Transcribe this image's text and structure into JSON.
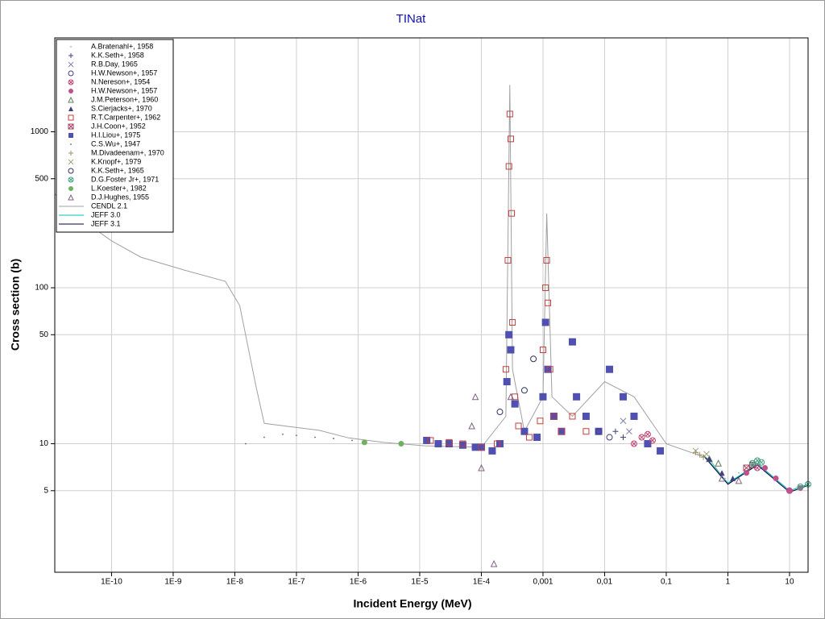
{
  "chart_data": {
    "type": "scatter",
    "title": "TINat",
    "xlabel": "Incident Energy (MeV)",
    "ylabel": "Cross section (b)",
    "xscale": "log",
    "yscale": "log",
    "grid": true,
    "legend": "upper left",
    "xlim": [
      1.2e-11,
      20
    ],
    "ylim": [
      1.5,
      4000
    ],
    "xticks": [
      {
        "value": 1e-10,
        "label": "1E-10"
      },
      {
        "value": 1e-09,
        "label": "1E-9"
      },
      {
        "value": 1e-08,
        "label": "1E-8"
      },
      {
        "value": 1e-07,
        "label": "1E-7"
      },
      {
        "value": 1e-06,
        "label": "1E-6"
      },
      {
        "value": 1e-05,
        "label": "1E-5"
      },
      {
        "value": 0.0001,
        "label": "1E-4"
      },
      {
        "value": 0.001,
        "label": "0,001"
      },
      {
        "value": 0.01,
        "label": "0,01"
      },
      {
        "value": 0.1,
        "label": "0,1"
      },
      1,
      10
    ],
    "yticks": [
      5,
      10,
      50,
      100,
      500,
      1000
    ],
    "series": [
      {
        "name": "A.Bratenahl+, 1958",
        "color": "#a0a0c0",
        "marker": "dot",
        "x": [
          0.9,
          1.5
        ],
        "values": [
          6,
          6.5
        ]
      },
      {
        "name": "K.K.Seth+, 1958",
        "color": "#404080",
        "marker": "plus",
        "x": [
          0.015,
          0.02
        ],
        "values": [
          12,
          11
        ]
      },
      {
        "name": "R.B.Day, 1965",
        "color": "#8080b0",
        "marker": "x",
        "x": [
          0.02,
          0.025
        ],
        "values": [
          14,
          12
        ]
      },
      {
        "name": "H.W.Newson+, 1957",
        "color": "#404080",
        "marker": "circle",
        "x": [
          0.008,
          0.012
        ],
        "values": [
          12,
          11
        ]
      },
      {
        "name": "N.Nereson+, 1954",
        "color": "#c04070",
        "marker": "circle-x",
        "x": [
          0.03,
          0.04,
          0.05,
          0.06,
          3,
          10
        ],
        "values": [
          10,
          11,
          11.5,
          10.5,
          7,
          5
        ]
      },
      {
        "name": "H.W.Newson+, 1957",
        "color": "#c05090",
        "marker": "filled-circle",
        "x": [
          2,
          4,
          6,
          10,
          15
        ],
        "values": [
          6.5,
          7,
          6,
          5,
          5.2
        ]
      },
      {
        "name": "J.M.Peterson+, 1960",
        "color": "#608060",
        "marker": "triangle",
        "x": [
          0.5,
          0.7
        ],
        "values": [
          8,
          7.5
        ]
      },
      {
        "name": "S.Cierjacks+, 1970",
        "color": "#404080",
        "marker": "filled-triangle",
        "x": [
          0.5,
          0.8,
          1.2
        ],
        "values": [
          8,
          6.5,
          6
        ]
      },
      {
        "name": "R.T.Carpenter+, 1962",
        "color": "#c04040",
        "marker": "square",
        "x": [
          1.5e-05,
          3e-05,
          5e-05,
          0.0001,
          0.00018,
          0.00025,
          0.00027,
          0.00028,
          0.00029,
          0.0003,
          0.00031,
          0.00032,
          0.00035,
          0.0004,
          0.0006,
          0.0009,
          0.001,
          0.0011,
          0.00115,
          0.0012,
          0.0013,
          0.0015,
          0.002,
          0.003,
          0.005
        ],
        "values": [
          10.5,
          10.2,
          10,
          9.5,
          10,
          30,
          150,
          600,
          1300,
          900,
          300,
          60,
          20,
          13,
          11,
          14,
          40,
          100,
          150,
          80,
          30,
          15,
          12,
          15,
          12
        ]
      },
      {
        "name": "J.H.Coon+, 1952",
        "color": "#a04060",
        "marker": "square-x",
        "x": [
          2,
          2.5
        ],
        "values": [
          7,
          7.3
        ]
      },
      {
        "name": "H.I.Liou+, 1975",
        "color": "#5050b0",
        "marker": "filled-square",
        "x": [
          1.3e-05,
          2e-05,
          3e-05,
          5e-05,
          8e-05,
          0.0001,
          0.00015,
          0.0002,
          0.00026,
          0.00028,
          0.0003,
          0.00035,
          0.0005,
          0.0008,
          0.001,
          0.0011,
          0.0012,
          0.0015,
          0.002,
          0.003,
          0.0035,
          0.005,
          0.008,
          0.012,
          0.02,
          0.03,
          0.05,
          0.08
        ],
        "values": [
          10.5,
          10,
          10,
          9.8,
          9.5,
          9.5,
          9,
          10,
          25,
          50,
          40,
          18,
          12,
          11,
          20,
          60,
          30,
          15,
          12,
          45,
          20,
          15,
          12,
          30,
          20,
          15,
          10,
          9
        ]
      },
      {
        "name": "C.S.Wu+, 1947",
        "color": "#606060",
        "marker": "dot",
        "x": [
          1.5e-08,
          3e-08,
          6e-08,
          1e-07,
          2e-07,
          4e-07,
          8e-07
        ],
        "values": [
          10,
          11,
          11.5,
          11.3,
          11,
          10.8,
          10.5
        ]
      },
      {
        "name": "M.Divadeenam+, 1970",
        "color": "#a09060",
        "marker": "plus",
        "x": [
          0.3,
          0.35,
          0.4
        ],
        "values": [
          8.8,
          8.5,
          8.2
        ]
      },
      {
        "name": "K.Knopf+, 1979",
        "color": "#a0a080",
        "marker": "x",
        "x": [
          0.3,
          0.45
        ],
        "values": [
          9,
          8.6
        ]
      },
      {
        "name": "K.K.Seth+, 1965",
        "color": "#303060",
        "marker": "circle",
        "x": [
          0.0002,
          0.0005,
          0.0007
        ],
        "values": [
          16,
          22,
          35
        ]
      },
      {
        "name": "D.G.Foster Jr+, 1971",
        "color": "#40a080",
        "marker": "circle-x",
        "x": [
          2.5,
          3,
          3.5,
          15,
          20
        ],
        "values": [
          7.5,
          7.8,
          7.6,
          5.3,
          5.5
        ]
      },
      {
        "name": "L.Koester+, 1982",
        "color": "#70b060",
        "marker": "filled-circle",
        "x": [
          1.27e-06,
          5e-06
        ],
        "values": [
          10.2,
          10
        ]
      },
      {
        "name": "D.J.Hughes, 1955",
        "color": "#806080",
        "marker": "triangle",
        "x": [
          7e-05,
          8e-05,
          0.0001,
          0.00016,
          0.0003,
          0.8,
          1.5
        ],
        "values": [
          13,
          20,
          7,
          1.7,
          20,
          6,
          5.8
        ]
      },
      {
        "name": "CENDL 2.1",
        "color": "#a0a0a0",
        "marker": "line",
        "x": [
          1.2e-11,
          3e-11,
          1e-10,
          3e-10,
          1.5e-09,
          7e-09,
          1.2e-08,
          2.2e-08,
          3e-08,
          2.3e-07,
          7e-07,
          2.6e-06,
          1.2e-05,
          0.0001,
          0.00025,
          0.00029,
          0.00032,
          0.0005,
          0.001,
          0.00115,
          0.0014,
          0.003,
          0.01,
          0.03,
          0.1,
          0.5,
          1,
          3,
          10,
          20
        ],
        "values": [
          400,
          280,
          200,
          157,
          130,
          110,
          77,
          23.5,
          13.5,
          12.2,
          10.9,
          10.2,
          9.7,
          9.5,
          15,
          2000,
          30,
          12,
          20,
          300,
          20,
          15,
          25,
          20,
          10,
          8,
          5.5,
          7.5,
          5,
          5.5
        ]
      },
      {
        "name": "JEFF 3.0",
        "color": "#00c0c0",
        "marker": "line",
        "x": [
          0.4,
          1,
          3,
          10,
          20
        ],
        "values": [
          8.5,
          5.6,
          7.4,
          5,
          5.5
        ]
      },
      {
        "name": "JEFF 3.1",
        "color": "#000040",
        "marker": "line",
        "x": [
          0.4,
          1,
          3,
          10,
          20
        ],
        "values": [
          8.4,
          5.5,
          7.3,
          4.9,
          5.4
        ]
      }
    ]
  }
}
